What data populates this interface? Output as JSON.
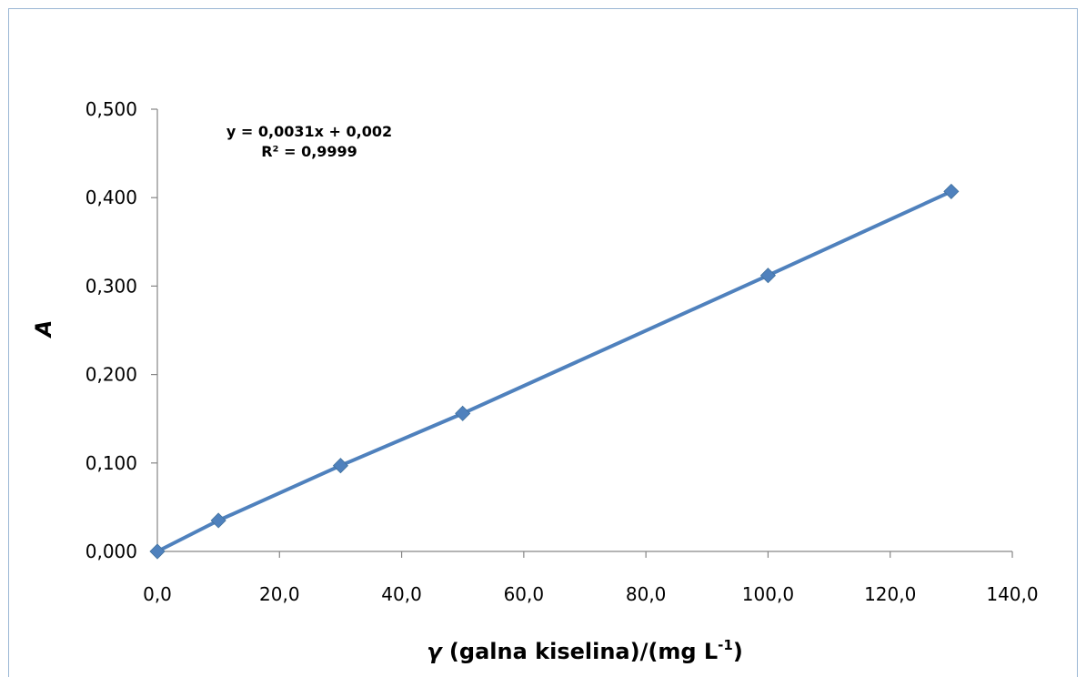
{
  "chart_data": {
    "type": "scatter",
    "x": [
      0,
      10,
      30,
      50,
      100,
      130
    ],
    "y": [
      0.0,
      0.035,
      0.097,
      0.156,
      0.312,
      0.407
    ],
    "xlim": [
      0,
      140
    ],
    "ylim": [
      0,
      0.5
    ],
    "xticks": [
      "0,0",
      "20,0",
      "40,0",
      "60,0",
      "80,0",
      "100,0",
      "120,0",
      "140,0"
    ],
    "yticks": [
      "0,000",
      "0,100",
      "0,200",
      "0,300",
      "0,400",
      "0,500"
    ],
    "xlabel_symbol": "γ",
    "xlabel_text": " (galna kiselina)/(mg L",
    "xlabel_sup": "-1",
    "xlabel_close": ")",
    "ylabel": "A",
    "trendline": {
      "slope": 0.0031,
      "intercept": 0.002,
      "equation": "y = 0,0031x + 0,002",
      "r_squared": "R² = 0,9999"
    },
    "grid": false,
    "series_color": "#4f81bd",
    "marker": "diamond"
  }
}
